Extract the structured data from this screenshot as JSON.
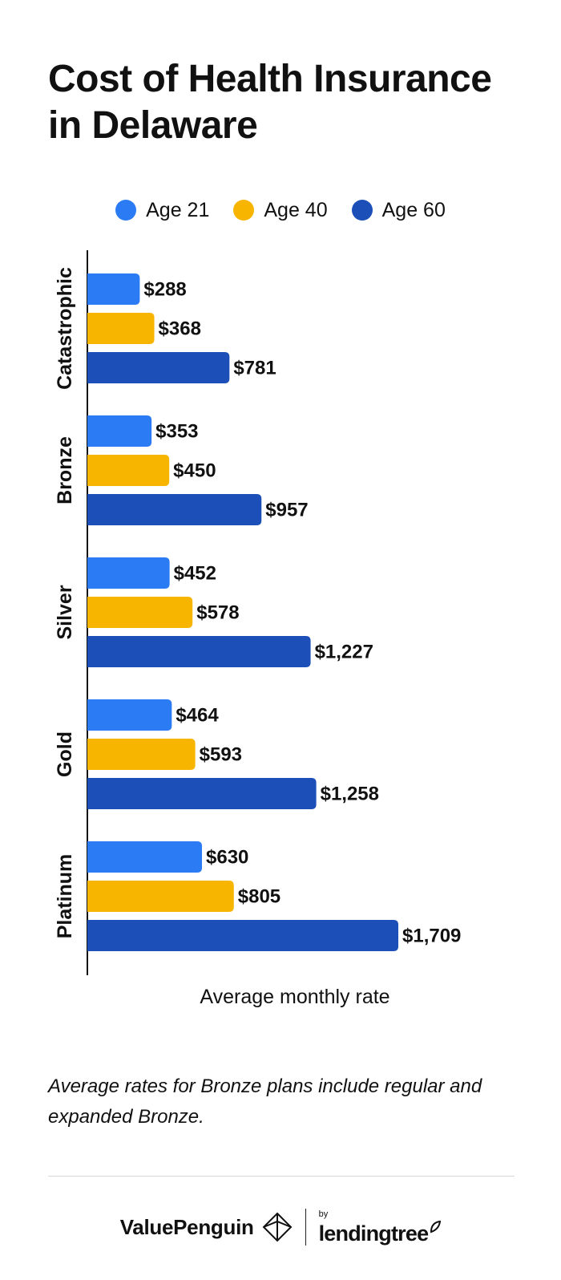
{
  "title": "Cost of Health Insurance in Delaware",
  "legend": [
    {
      "label": "Age 21",
      "color": "#2b7bf5"
    },
    {
      "label": "Age 40",
      "color": "#f7b500"
    },
    {
      "label": "Age 60",
      "color": "#1d4fb8"
    }
  ],
  "chart_data": {
    "type": "bar",
    "orientation": "horizontal",
    "categories": [
      "Catastrophic",
      "Bronze",
      "Silver",
      "Gold",
      "Platinum"
    ],
    "series": [
      {
        "name": "Age 21",
        "color": "#2b7bf5",
        "values": [
          288,
          353,
          452,
          464,
          630
        ],
        "labels": [
          "$288",
          "$353",
          "$452",
          "$464",
          "$630"
        ]
      },
      {
        "name": "Age 40",
        "color": "#f7b500",
        "values": [
          368,
          450,
          578,
          593,
          805
        ],
        "labels": [
          "$368",
          "$450",
          "$578",
          "$593",
          "$805"
        ]
      },
      {
        "name": "Age 60",
        "color": "#1d4fb8",
        "values": [
          781,
          957,
          1227,
          1258,
          1709
        ],
        "labels": [
          "$781",
          "$957",
          "$1,227",
          "$1,258",
          "$1,709"
        ]
      }
    ],
    "xlabel": "Average monthly rate",
    "ylabel": "",
    "xlim": [
      0,
      1709
    ],
    "grid": false,
    "legend_position": "top"
  },
  "footnote": "Average rates for Bronze plans include regular and expanded Bronze.",
  "brand": {
    "valuepenguin": "ValuePenguin",
    "by": "by",
    "lendingtree": "lendingtree"
  }
}
